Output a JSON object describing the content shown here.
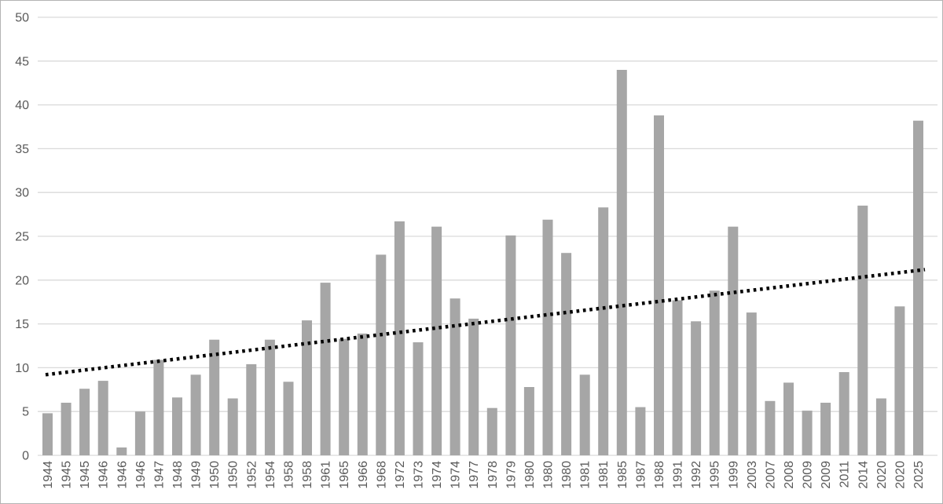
{
  "chart_data": {
    "type": "bar",
    "title": "",
    "xlabel": "",
    "ylabel": "",
    "legend": "none",
    "grid": "horizontal",
    "ylim": [
      0,
      50
    ],
    "y_ticks": [
      0,
      5,
      10,
      15,
      20,
      25,
      30,
      35,
      40,
      45,
      50
    ],
    "categories": [
      "1944",
      "1945",
      "1945",
      "1946",
      "1946",
      "1946",
      "1947",
      "1948",
      "1949",
      "1950",
      "1950",
      "1952",
      "1954",
      "1958",
      "1958",
      "1961",
      "1965",
      "1966",
      "1968",
      "1972",
      "1973",
      "1974",
      "1974",
      "1977",
      "1978",
      "1979",
      "1980",
      "1980",
      "1980",
      "1981",
      "1981",
      "1985",
      "1987",
      "1988",
      "1991",
      "1992",
      "1995",
      "1999",
      "2003",
      "2007",
      "2008",
      "2009",
      "2009",
      "2011",
      "2014",
      "2020",
      "2020",
      "2025"
    ],
    "values": [
      4.8,
      6.0,
      7.6,
      8.5,
      0.9,
      5.0,
      10.9,
      6.6,
      9.2,
      13.2,
      6.5,
      10.4,
      13.2,
      8.4,
      15.4,
      19.7,
      13.3,
      13.9,
      22.9,
      26.7,
      12.9,
      26.1,
      17.9,
      15.6,
      5.4,
      25.1,
      7.8,
      26.9,
      23.1,
      9.2,
      28.3,
      44.0,
      5.5,
      38.8,
      17.7,
      15.3,
      18.8,
      26.1,
      16.3,
      6.2,
      8.3,
      5.1,
      6.0,
      9.5,
      28.5,
      6.5,
      17.0,
      38.2
    ],
    "trendline": {
      "type": "linear",
      "style": "dotted",
      "start_value": 9.2,
      "end_value": 21.2,
      "color": "#000000"
    },
    "colors": {
      "bar": "#a6a6a6",
      "gridline": "#d9d9d9",
      "axis_text": "#595959",
      "background": "#ffffff",
      "frame_border": "#b3b3b3"
    }
  }
}
